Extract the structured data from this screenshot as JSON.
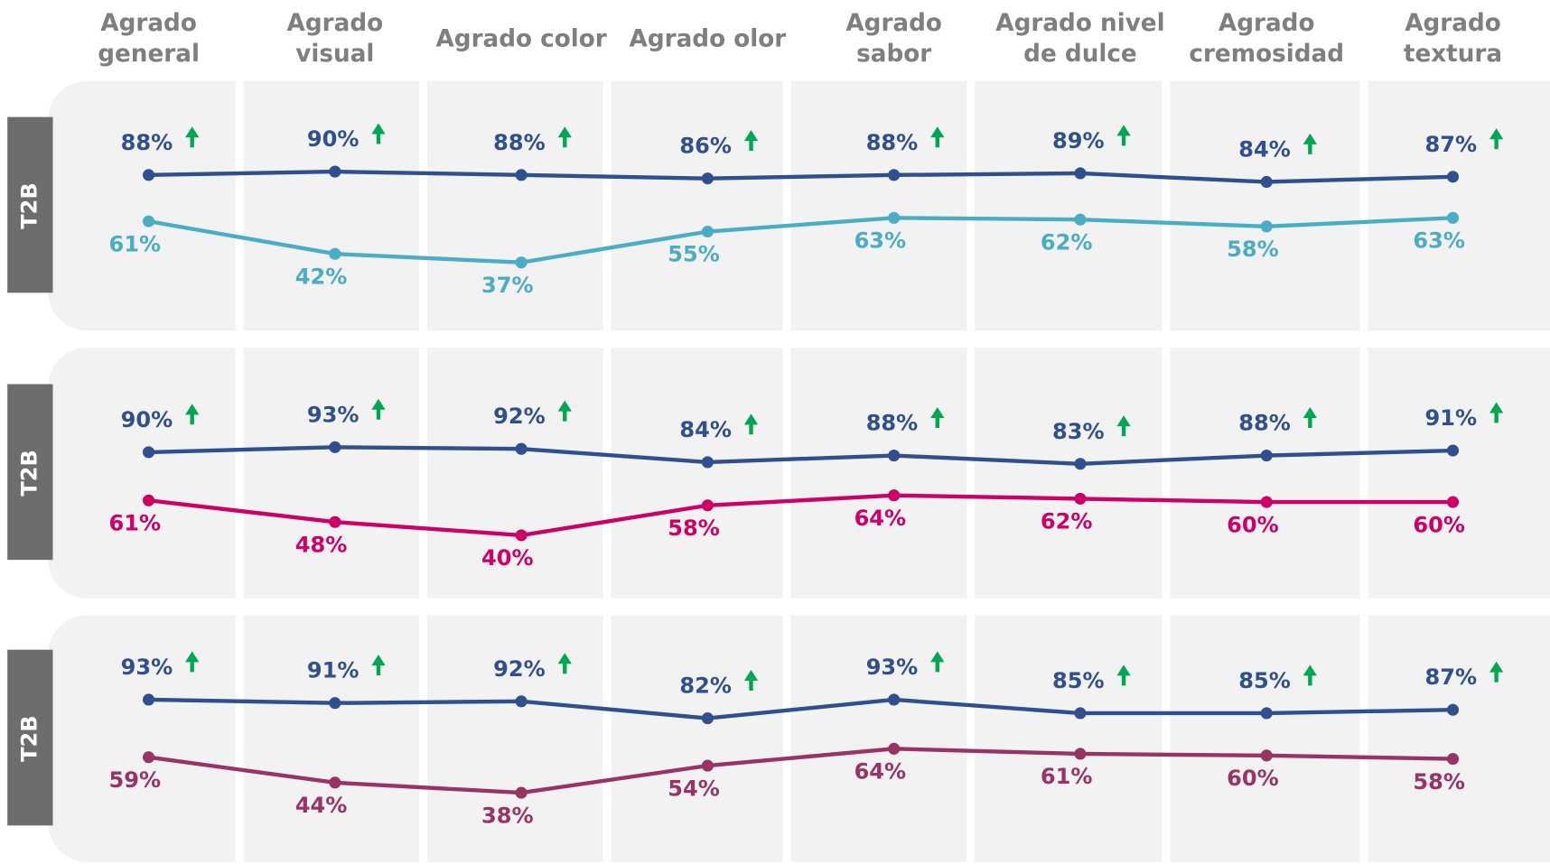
{
  "chart_data": [
    {
      "type": "line",
      "ylabel": "T2B",
      "categories": [
        "Agrado\ngeneral",
        "Agrado\nvisual",
        "Agrado color",
        "Agrado olor",
        "Agrado\nsabor",
        "Agrado nivel\nde dulce",
        "Agrado\ncremosidad",
        "Agrado\ntextura"
      ],
      "ylim": [
        0,
        140
      ],
      "series": [
        {
          "color": "#2f4f8f",
          "values": [
            88,
            90,
            88,
            86,
            88,
            89,
            84,
            87
          ],
          "value_labels": [
            "88%",
            "90%",
            "88%",
            "86%",
            "88%",
            "89%",
            "84%",
            "87%"
          ]
        },
        {
          "color": "#4bacc6",
          "values": [
            61,
            42,
            37,
            55,
            63,
            62,
            58,
            63
          ],
          "value_labels": [
            "61%",
            "42%",
            "37%",
            "55%",
            "63%",
            "62%",
            "58%",
            "63%"
          ]
        }
      ]
    },
    {
      "type": "line",
      "ylabel": "T2B",
      "ylim": [
        5,
        150
      ],
      "series": [
        {
          "color": "#2f4f8f",
          "values": [
            90,
            93,
            92,
            84,
            88,
            83,
            88,
            91
          ],
          "value_labels": [
            "90%",
            "93%",
            "92%",
            "84%",
            "88%",
            "83%",
            "88%",
            "91%"
          ]
        },
        {
          "color": "#cc0066",
          "values": [
            61,
            48,
            40,
            58,
            64,
            62,
            60,
            60
          ],
          "value_labels": [
            "61%",
            "48%",
            "40%",
            "58%",
            "64%",
            "62%",
            "60%",
            "60%"
          ]
        }
      ]
    },
    {
      "type": "line",
      "ylabel": "T2B",
      "ylim": [
        0,
        140
      ],
      "series": [
        {
          "color": "#2f4f8f",
          "values": [
            93,
            91,
            92,
            82,
            93,
            85,
            85,
            87
          ],
          "value_labels": [
            "93%",
            "91%",
            "92%",
            "82%",
            "93%",
            "85%",
            "85%",
            "87%"
          ]
        },
        {
          "color": "#993366",
          "values": [
            59,
            44,
            38,
            54,
            64,
            61,
            60,
            58
          ],
          "value_labels": [
            "59%",
            "44%",
            "38%",
            "54%",
            "64%",
            "61%",
            "60%",
            "58%"
          ]
        }
      ]
    }
  ]
}
